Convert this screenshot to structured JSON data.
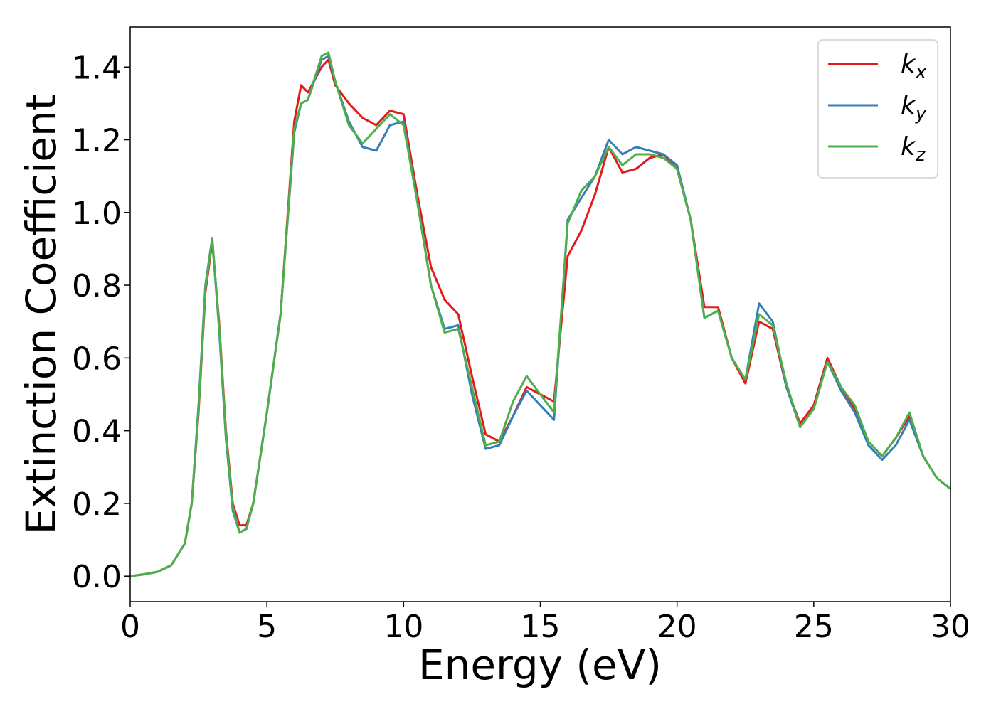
{
  "chart_data": {
    "type": "line",
    "x_label": "Energy (eV)",
    "y_label": "Extinction Coefficient",
    "x": [
      0,
      0.5,
      1,
      1.5,
      2,
      2.25,
      2.5,
      2.75,
      3,
      3.25,
      3.5,
      3.75,
      4,
      4.25,
      4.5,
      5,
      5.5,
      6,
      6.25,
      6.5,
      7,
      7.25,
      7.5,
      8,
      8.5,
      9,
      9.5,
      10,
      10.5,
      11,
      11.5,
      12,
      12.5,
      13,
      13.5,
      14,
      14.5,
      15,
      15.5,
      16,
      16.5,
      17,
      17.5,
      18,
      18.5,
      19,
      19.5,
      20,
      20.5,
      21,
      21.5,
      22,
      22.5,
      23,
      23.5,
      24,
      24.5,
      25,
      25.5,
      26,
      26.5,
      27,
      27.5,
      28,
      28.5,
      29,
      29.5,
      30
    ],
    "series": [
      {
        "name": "kx",
        "color": "#e41a1c",
        "values": [
          0,
          0.005,
          0.012,
          0.03,
          0.09,
          0.2,
          0.45,
          0.78,
          0.92,
          0.7,
          0.4,
          0.2,
          0.14,
          0.14,
          0.2,
          0.45,
          0.72,
          1.25,
          1.35,
          1.33,
          1.4,
          1.42,
          1.35,
          1.3,
          1.26,
          1.24,
          1.28,
          1.27,
          1.05,
          0.85,
          0.76,
          0.72,
          0.55,
          0.39,
          0.37,
          0.44,
          0.52,
          0.5,
          0.48,
          0.88,
          0.95,
          1.05,
          1.18,
          1.11,
          1.12,
          1.15,
          1.16,
          1.12,
          0.98,
          0.74,
          0.74,
          0.6,
          0.53,
          0.7,
          0.68,
          0.52,
          0.42,
          0.47,
          0.6,
          0.52,
          0.46,
          0.37,
          0.33,
          0.38,
          0.44,
          0.33,
          0.27,
          0.24
        ]
      },
      {
        "name": "ky",
        "color": "#377eb8",
        "values": [
          0,
          0.005,
          0.012,
          0.03,
          0.09,
          0.2,
          0.47,
          0.8,
          0.93,
          0.68,
          0.38,
          0.18,
          0.12,
          0.13,
          0.2,
          0.45,
          0.72,
          1.22,
          1.3,
          1.31,
          1.42,
          1.43,
          1.36,
          1.25,
          1.18,
          1.17,
          1.24,
          1.25,
          1.03,
          0.8,
          0.68,
          0.69,
          0.5,
          0.35,
          0.36,
          0.44,
          0.51,
          0.47,
          0.43,
          0.98,
          1.04,
          1.1,
          1.2,
          1.16,
          1.18,
          1.17,
          1.16,
          1.13,
          0.98,
          0.71,
          0.73,
          0.6,
          0.54,
          0.75,
          0.7,
          0.52,
          0.41,
          0.46,
          0.59,
          0.51,
          0.45,
          0.36,
          0.32,
          0.36,
          0.43,
          0.33,
          0.27,
          0.24
        ]
      },
      {
        "name": "kz",
        "color": "#4daf4a",
        "values": [
          0,
          0.005,
          0.012,
          0.03,
          0.09,
          0.2,
          0.46,
          0.79,
          0.93,
          0.69,
          0.39,
          0.19,
          0.12,
          0.13,
          0.2,
          0.45,
          0.72,
          1.23,
          1.3,
          1.31,
          1.43,
          1.44,
          1.36,
          1.24,
          1.19,
          1.23,
          1.27,
          1.24,
          1.03,
          0.8,
          0.67,
          0.68,
          0.52,
          0.36,
          0.37,
          0.48,
          0.55,
          0.5,
          0.45,
          0.97,
          1.06,
          1.1,
          1.18,
          1.13,
          1.16,
          1.16,
          1.15,
          1.12,
          0.98,
          0.71,
          0.73,
          0.6,
          0.54,
          0.72,
          0.69,
          0.53,
          0.41,
          0.46,
          0.59,
          0.52,
          0.47,
          0.37,
          0.33,
          0.38,
          0.45,
          0.33,
          0.27,
          0.24
        ]
      }
    ],
    "xlim": [
      0,
      30
    ],
    "xticks": [
      0,
      5,
      10,
      15,
      20,
      25,
      30
    ],
    "ylim": [
      -0.07,
      1.51
    ],
    "yticks": [
      {
        "value": 0,
        "label": "0.0"
      },
      0.2,
      0.4,
      0.6,
      0.8,
      {
        "value": 1,
        "label": "1.0"
      },
      1.2,
      1.4
    ],
    "grid": false,
    "legend": "upper right"
  }
}
